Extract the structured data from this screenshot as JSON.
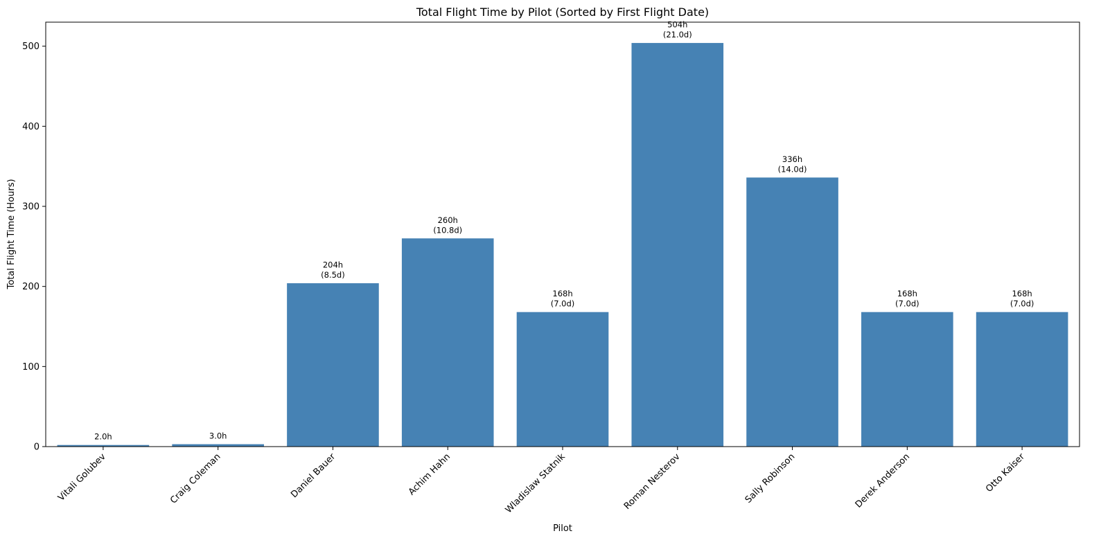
{
  "chart_data": {
    "type": "bar",
    "title": "Total Flight Time by Pilot (Sorted by First Flight Date)",
    "xlabel": "Pilot",
    "ylabel": "Total Flight Time (Hours)",
    "ylim": [
      0,
      530
    ],
    "yticks": [
      0,
      100,
      200,
      300,
      400,
      500
    ],
    "bar_color": "#4682b4",
    "grid": false,
    "categories": [
      "Vitali Golubev",
      "Craig Coleman",
      "Daniel Bauer",
      "Achim Hahn",
      "Wladislaw Statnik",
      "Roman Nesterov",
      "Sally Robinson",
      "Derek Anderson",
      "Otto Kaiser"
    ],
    "values": [
      2,
      3,
      204,
      260,
      168,
      504,
      336,
      168,
      168
    ],
    "labels": [
      [
        "2.0h"
      ],
      [
        "3.0h"
      ],
      [
        "204h",
        "(8.5d)"
      ],
      [
        "260h",
        "(10.8d)"
      ],
      [
        "168h",
        "(7.0d)"
      ],
      [
        "504h",
        "(21.0d)"
      ],
      [
        "336h",
        "(14.0d)"
      ],
      [
        "168h",
        "(7.0d)"
      ],
      [
        "168h",
        "(7.0d)"
      ]
    ]
  }
}
